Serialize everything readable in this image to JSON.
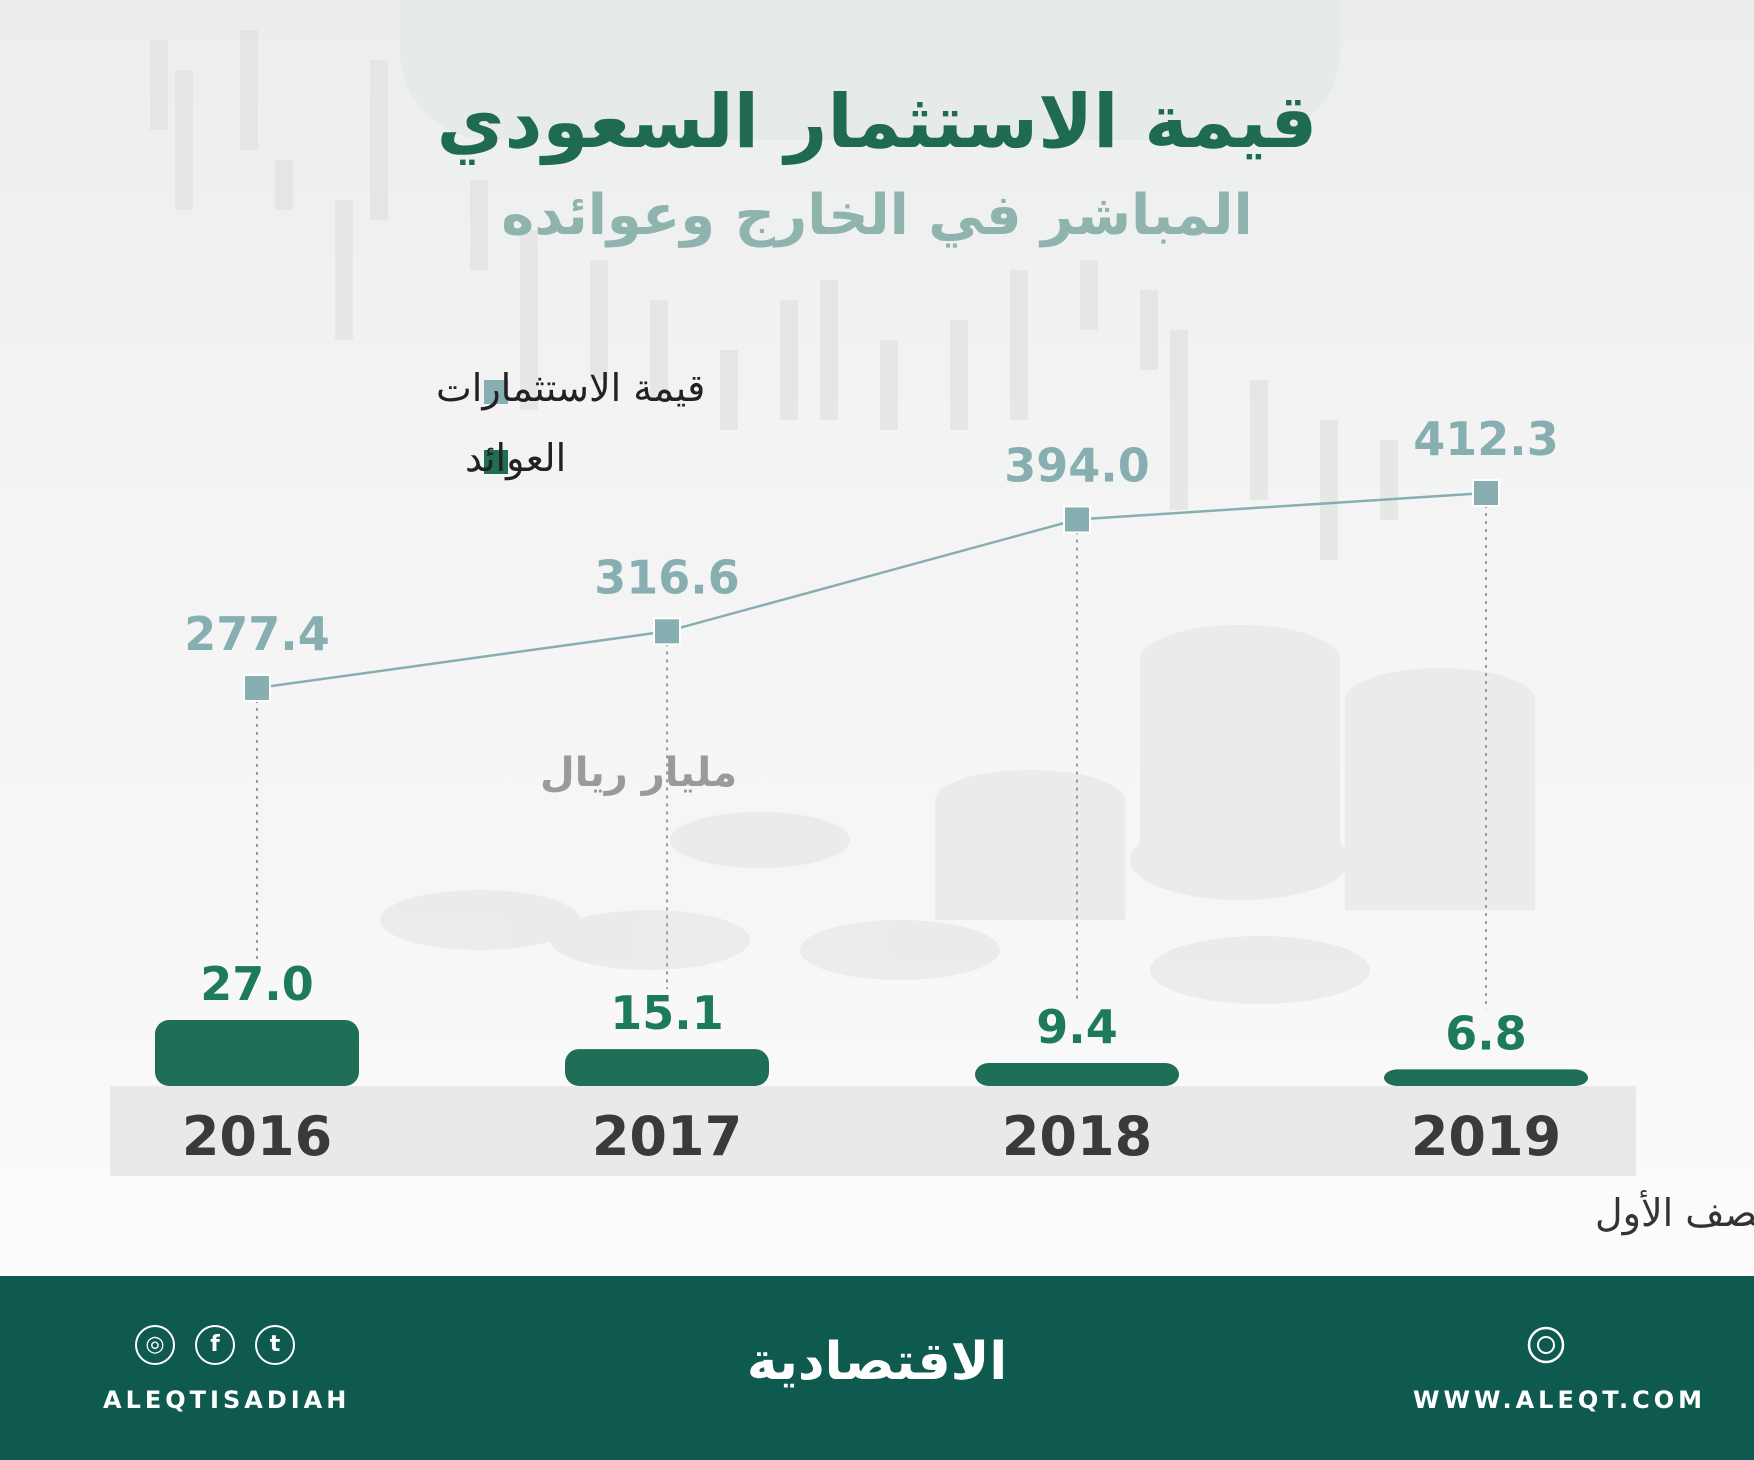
{
  "title": "قيمة الاستثمار السعودي",
  "subtitle": "المباشر في الخارج وعوائده",
  "legend": {
    "investment_value": "قيمة الاستثمارات",
    "returns": "العوائد"
  },
  "unit": "مليار ريال",
  "period_note": "النصف الأول",
  "colors": {
    "line_series": "#87aeb0",
    "bar_series": "#1f6e58",
    "footer": "#0e5a4f",
    "title": "#1e6b52"
  },
  "chart_data": {
    "type": "bar",
    "categories": [
      "2016",
      "2017",
      "2018",
      "2019"
    ],
    "series": [
      {
        "name": "قيمة الاستثمارات",
        "type": "line",
        "values": [
          277.4,
          316.6,
          394.0,
          412.3
        ]
      },
      {
        "name": "العوائد",
        "type": "bar",
        "values": [
          27.0,
          15.1,
          9.4,
          6.8
        ]
      }
    ],
    "value_labels": {
      "line": [
        "277.4",
        "316.6",
        "394.0",
        "412.3"
      ],
      "bar": [
        "27.0",
        "15.1",
        "9.4",
        "6.8"
      ]
    },
    "title": "قيمة الاستثمار السعودي",
    "subtitle": "المباشر في الخارج وعوائده",
    "unit": "مليار ريال",
    "legend_position": "top-left",
    "grid": false
  },
  "footer": {
    "brand": "الاقتصادية",
    "social_handle": "ALEQTISADIAH",
    "website": "WWW.ALEQT.COM",
    "icons": [
      "instagram-icon",
      "facebook-icon",
      "twitter-icon",
      "dribbble-icon"
    ]
  }
}
